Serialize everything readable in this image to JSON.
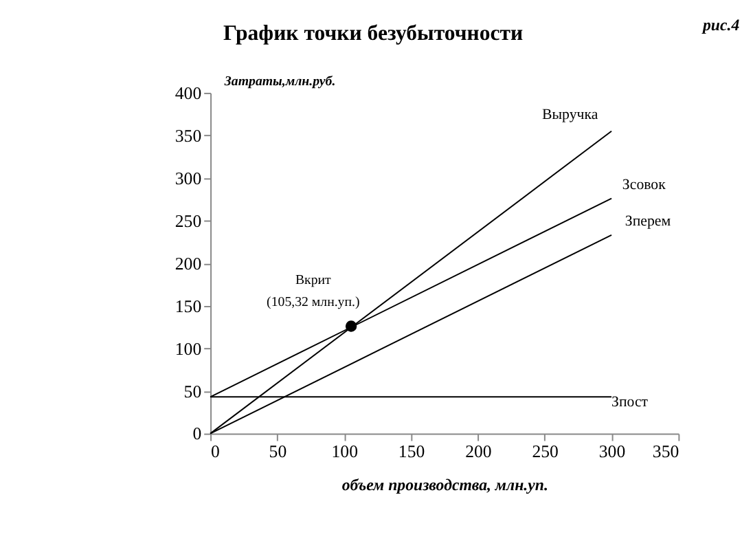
{
  "chart_data": {
    "type": "line",
    "title": "График точки безубыточности",
    "xlabel": "объем производства, млн.уп.",
    "ylabel": "Затраты,млн.руб.",
    "xlim": [
      0,
      350
    ],
    "xticks": [
      0,
      50,
      100,
      150,
      200,
      250,
      300,
      350
    ],
    "ylim": [
      0,
      400
    ],
    "yticks": [
      0,
      50,
      100,
      150,
      200,
      250,
      300,
      350,
      400
    ],
    "grid": false,
    "line_style": "solid",
    "marker": "none",
    "series": [
      {
        "name": "Выручка",
        "color": "#000000",
        "x": [
          0,
          300
        ],
        "values": [
          0,
          355
        ]
      },
      {
        "name": "Зсовок",
        "color": "#000000",
        "x": [
          0,
          300
        ],
        "values": [
          43,
          276
        ]
      },
      {
        "name": "Зперем",
        "color": "#000000",
        "x": [
          0,
          300
        ],
        "values": [
          0,
          233
        ]
      },
      {
        "name": "Зпост",
        "color": "#000000",
        "x": [
          0,
          300
        ],
        "values": [
          43,
          43
        ]
      },
      {
        "type": "scatter",
        "marker": "circle",
        "color": "#000000",
        "x": [
          105.32
        ],
        "values": [
          126
        ]
      }
    ],
    "annotations": [
      "рис.4",
      {
        "text": "Вкрит\n(105,32 млн.уп.)",
        "x": 105.32,
        "y": 126
      }
    ]
  }
}
